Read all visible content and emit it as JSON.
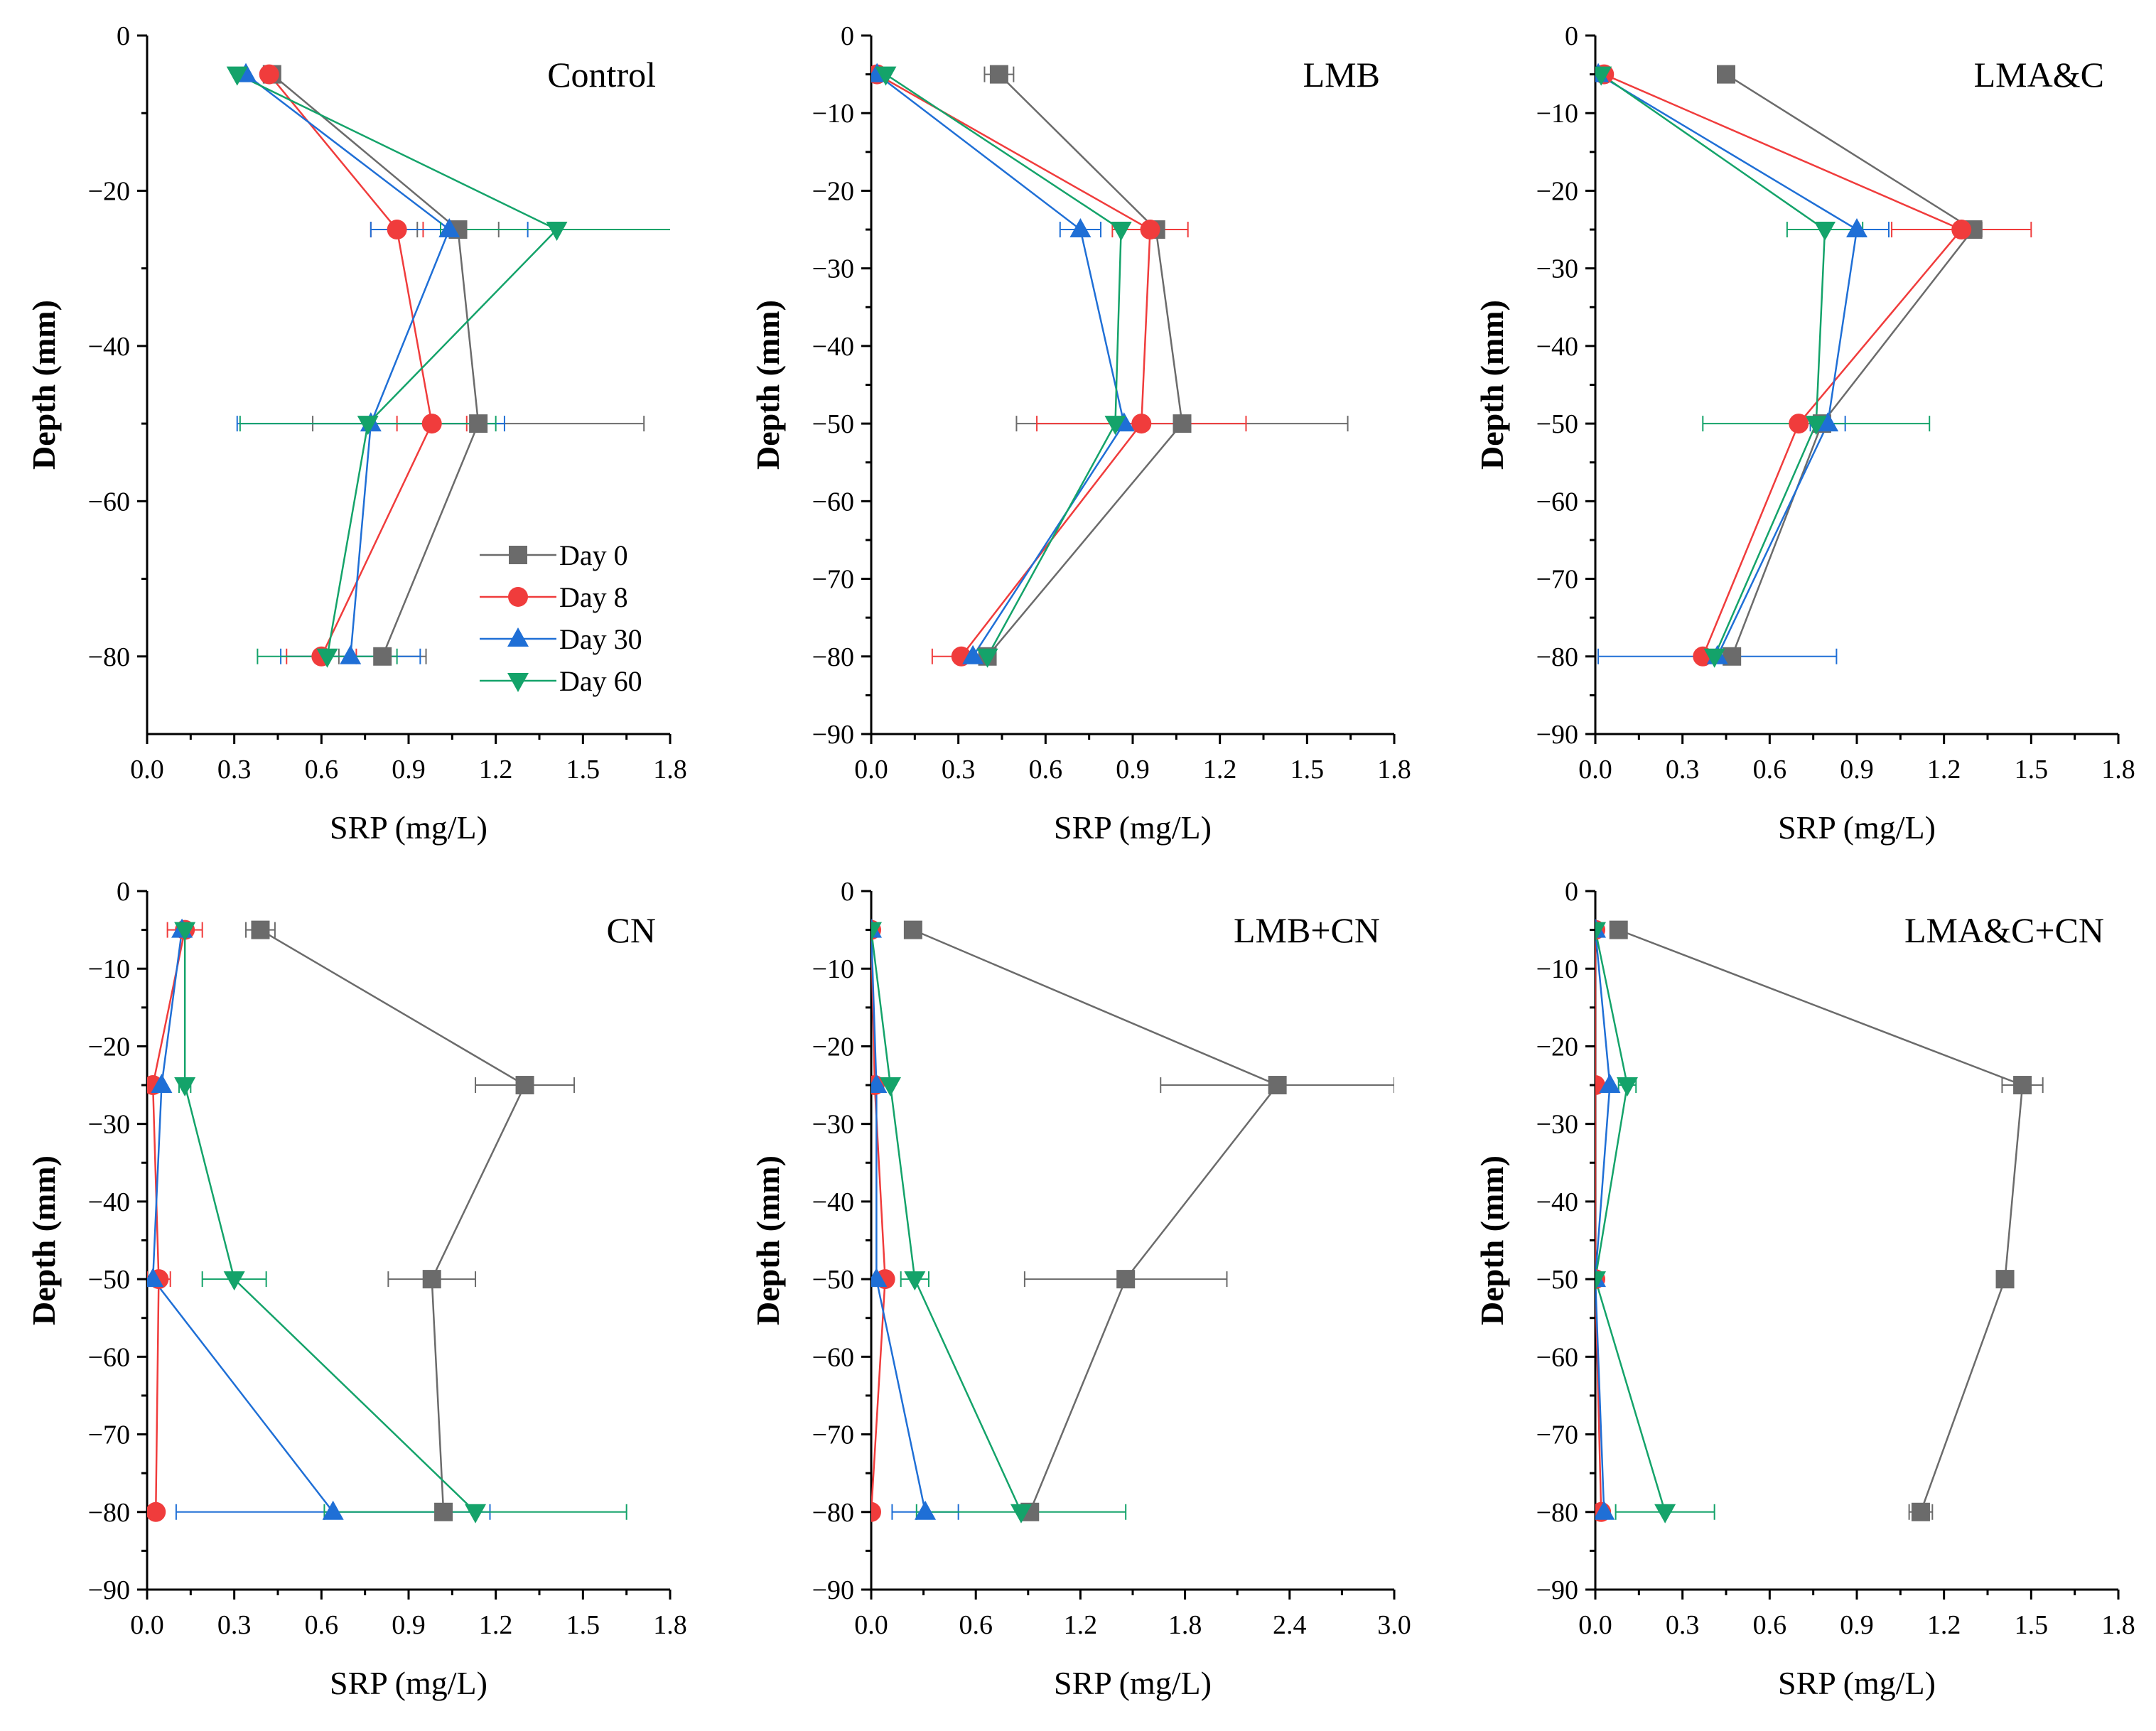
{
  "figure": {
    "x_axis_label": "SRP (mg/L)",
    "y_axis_label": "Depth (mm)",
    "legend": [
      "Day 0",
      "Day 8",
      "Day 30",
      "Day 60"
    ]
  },
  "colors": {
    "Day 0": "#6b6b6b",
    "Day 8": "#f03c3c",
    "Day 30": "#1f6fd6",
    "Day 60": "#14a36a"
  },
  "chart_data": [
    {
      "type": "line",
      "title": "Control",
      "xlabel": "SRP (mg/L)",
      "ylabel": "Depth (mm)",
      "xlim": [
        0,
        1.8
      ],
      "ylim": [
        -90,
        0
      ],
      "xticks": [
        "0.0",
        "0.3",
        "0.6",
        "0.9",
        "1.2",
        "1.5",
        "1.8"
      ],
      "yticks": [
        "0",
        "-20",
        "-40",
        "-60",
        "-80"
      ],
      "legend_position": "lower-right",
      "series": [
        {
          "name": "Day 0",
          "depth": [
            -5,
            -25,
            -50,
            -80
          ],
          "values": [
            0.43,
            1.07,
            1.14,
            0.81
          ],
          "errors": [
            0.0,
            0.14,
            0.57,
            0.15
          ]
        },
        {
          "name": "Day 8",
          "depth": [
            -5,
            -25,
            -50,
            -80
          ],
          "values": [
            0.42,
            0.86,
            0.98,
            0.6
          ],
          "errors": [
            0.0,
            0.09,
            0.12,
            0.12
          ]
        },
        {
          "name": "Day 30",
          "depth": [
            -5,
            -25,
            -50,
            -80
          ],
          "values": [
            0.34,
            1.04,
            0.77,
            0.7
          ],
          "errors": [
            0.0,
            0.27,
            0.46,
            0.24
          ]
        },
        {
          "name": "Day 60",
          "depth": [
            -5,
            -25,
            -50,
            -80
          ],
          "values": [
            0.31,
            1.41,
            0.76,
            0.62
          ],
          "errors": [
            0.0,
            0.4,
            0.44,
            0.24
          ]
        }
      ]
    },
    {
      "type": "line",
      "title": "LMB",
      "xlabel": "SRP (mg/L)",
      "ylabel": "Depth (mm)",
      "xlim": [
        0,
        1.8
      ],
      "ylim": [
        -90,
        0
      ],
      "xticks": [
        "0.0",
        "0.3",
        "0.6",
        "0.9",
        "1.2",
        "1.5",
        "1.8"
      ],
      "yticks": [
        "0",
        "-10",
        "-20",
        "-30",
        "-40",
        "-50",
        "-60",
        "-70",
        "-80",
        "-90"
      ],
      "series": [
        {
          "name": "Day 0",
          "depth": [
            -5,
            -25,
            -50,
            -80
          ],
          "values": [
            0.44,
            0.98,
            1.07,
            0.4
          ],
          "errors": [
            0.05,
            0.0,
            0.57,
            0.0
          ]
        },
        {
          "name": "Day 8",
          "depth": [
            -5,
            -25,
            -50,
            -80
          ],
          "values": [
            0.02,
            0.96,
            0.93,
            0.31
          ],
          "errors": [
            0.0,
            0.13,
            0.36,
            0.1
          ]
        },
        {
          "name": "Day 30",
          "depth": [
            -5,
            -25,
            -50,
            -80
          ],
          "values": [
            0.02,
            0.72,
            0.87,
            0.35
          ],
          "errors": [
            0.0,
            0.07,
            0.0,
            0.0
          ]
        },
        {
          "name": "Day 60",
          "depth": [
            -5,
            -25,
            -50,
            -80
          ],
          "values": [
            0.05,
            0.86,
            0.84,
            0.4
          ],
          "errors": [
            0.0,
            0.0,
            0.0,
            0.0
          ]
        }
      ]
    },
    {
      "type": "line",
      "title": "LMA&C",
      "xlabel": "SRP (mg/L)",
      "ylabel": "Depth (mm)",
      "xlim": [
        0,
        1.8
      ],
      "ylim": [
        -90,
        0
      ],
      "xticks": [
        "0.0",
        "0.3",
        "0.6",
        "0.9",
        "1.2",
        "1.5",
        "1.8"
      ],
      "yticks": [
        "0",
        "-10",
        "-20",
        "-30",
        "-40",
        "-50",
        "-60",
        "-70",
        "-80",
        "-90"
      ],
      "series": [
        {
          "name": "Day 0",
          "depth": [
            -5,
            -25,
            -50,
            -80
          ],
          "values": [
            0.45,
            1.3,
            0.78,
            0.47
          ],
          "errors": [
            0.0,
            0.03,
            0.0,
            0.0
          ]
        },
        {
          "name": "Day 8",
          "depth": [
            -5,
            -25,
            -50,
            -80
          ],
          "values": [
            0.03,
            1.26,
            0.7,
            0.37
          ],
          "errors": [
            0.0,
            0.24,
            0.0,
            0.0
          ]
        },
        {
          "name": "Day 30",
          "depth": [
            -5,
            -25,
            -50,
            -80
          ],
          "values": [
            0.01,
            0.9,
            0.8,
            0.42
          ],
          "errors": [
            0.0,
            0.11,
            0.06,
            0.41
          ]
        },
        {
          "name": "Day 60",
          "depth": [
            -5,
            -25,
            -50,
            -80
          ],
          "values": [
            0.02,
            0.79,
            0.76,
            0.41
          ],
          "errors": [
            0.0,
            0.13,
            0.39,
            0.0
          ]
        }
      ]
    },
    {
      "type": "line",
      "title": "CN",
      "xlabel": "SRP (mg/L)",
      "ylabel": "Depth (mm)",
      "xlim": [
        0,
        1.8
      ],
      "ylim": [
        -90,
        0
      ],
      "xticks": [
        "0.0",
        "0.3",
        "0.6",
        "0.9",
        "1.2",
        "1.5",
        "1.8"
      ],
      "yticks": [
        "0",
        "-10",
        "-20",
        "-30",
        "-40",
        "-50",
        "-60",
        "-70",
        "-80",
        "-90"
      ],
      "series": [
        {
          "name": "Day 0",
          "depth": [
            -5,
            -25,
            -50,
            -80
          ],
          "values": [
            0.39,
            1.3,
            0.98,
            1.02
          ],
          "errors": [
            0.05,
            0.17,
            0.15,
            0.0
          ]
        },
        {
          "name": "Day 8",
          "depth": [
            -5,
            -25,
            -50,
            -80
          ],
          "values": [
            0.13,
            0.02,
            0.04,
            0.03
          ],
          "errors": [
            0.06,
            0.0,
            0.04,
            0.0
          ]
        },
        {
          "name": "Day 30",
          "depth": [
            -5,
            -25,
            -50,
            -80
          ],
          "values": [
            0.12,
            0.05,
            0.02,
            0.64
          ],
          "errors": [
            0.0,
            0.0,
            0.0,
            0.54
          ]
        },
        {
          "name": "Day 60",
          "depth": [
            -5,
            -25,
            -50,
            -80
          ],
          "values": [
            0.13,
            0.13,
            0.3,
            1.13
          ],
          "errors": [
            0.0,
            0.02,
            0.11,
            0.52
          ]
        }
      ]
    },
    {
      "type": "line",
      "title": "LMB+CN",
      "xlabel": "SRP (mg/L)",
      "ylabel": "Depth (mm)",
      "xlim": [
        0,
        3.0
      ],
      "ylim": [
        -90,
        0
      ],
      "xticks": [
        "0.0",
        "0.6",
        "1.2",
        "1.8",
        "2.4",
        "3.0"
      ],
      "yticks": [
        "0",
        "-10",
        "-20",
        "-30",
        "-40",
        "-50",
        "-60",
        "-70",
        "-80",
        "-90"
      ],
      "series": [
        {
          "name": "Day 0",
          "depth": [
            -5,
            -25,
            -50,
            -80
          ],
          "values": [
            0.24,
            2.33,
            1.46,
            0.91
          ],
          "errors": [
            0.0,
            0.67,
            0.58,
            0.0
          ]
        },
        {
          "name": "Day 8",
          "depth": [
            -5,
            -25,
            -50,
            -80
          ],
          "values": [
            0.0,
            0.02,
            0.08,
            0.0
          ],
          "errors": [
            0.0,
            0.0,
            0.0,
            0.0
          ]
        },
        {
          "name": "Day 30",
          "depth": [
            -5,
            -25,
            -50,
            -80
          ],
          "values": [
            0.0,
            0.03,
            0.03,
            0.31
          ],
          "errors": [
            0.0,
            0.0,
            0.0,
            0.19
          ]
        },
        {
          "name": "Day 60",
          "depth": [
            -5,
            -25,
            -50,
            -80
          ],
          "values": [
            0.0,
            0.11,
            0.25,
            0.86
          ],
          "errors": [
            0.0,
            0.0,
            0.08,
            0.6
          ]
        }
      ]
    },
    {
      "type": "line",
      "title": "LMA&C+CN",
      "xlabel": "SRP (mg/L)",
      "ylabel": "Depth (mm)",
      "xlim": [
        0,
        1.8
      ],
      "ylim": [
        -90,
        0
      ],
      "xticks": [
        "0.0",
        "0.3",
        "0.6",
        "0.9",
        "1.2",
        "1.5",
        "1.8"
      ],
      "yticks": [
        "0",
        "-10",
        "-20",
        "-30",
        "-40",
        "-50",
        "-60",
        "-70",
        "-80",
        "-90"
      ],
      "series": [
        {
          "name": "Day 0",
          "depth": [
            -5,
            -25,
            -50,
            -80
          ],
          "values": [
            0.08,
            1.47,
            1.41,
            1.12
          ],
          "errors": [
            0.0,
            0.07,
            0.0,
            0.04
          ]
        },
        {
          "name": "Day 8",
          "depth": [
            -5,
            -25,
            -50,
            -80
          ],
          "values": [
            0.0,
            0.0,
            0.0,
            0.02
          ],
          "errors": [
            0.0,
            0.0,
            0.0,
            0.0
          ]
        },
        {
          "name": "Day 30",
          "depth": [
            -5,
            -25,
            -50,
            -80
          ],
          "values": [
            0.0,
            0.05,
            0.0,
            0.03
          ],
          "errors": [
            0.0,
            0.0,
            0.0,
            0.0
          ]
        },
        {
          "name": "Day 60",
          "depth": [
            -5,
            -25,
            -50,
            -80
          ],
          "values": [
            0.0,
            0.11,
            0.0,
            0.24
          ],
          "errors": [
            0.0,
            0.03,
            0.0,
            0.17
          ]
        }
      ]
    }
  ]
}
